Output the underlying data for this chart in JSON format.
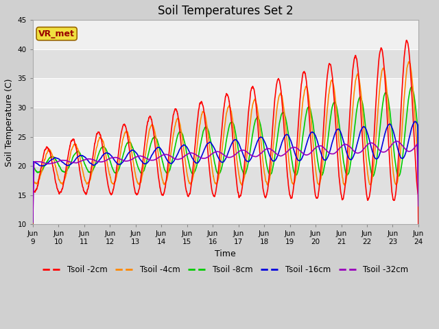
{
  "title": "Soil Temperatures Set 2",
  "xlabel": "Time",
  "ylabel": "Soil Temperature (C)",
  "ylim": [
    10,
    45
  ],
  "series_colors": [
    "#ff0000",
    "#ff8800",
    "#00cc00",
    "#0000dd",
    "#9900bb"
  ],
  "series_labels": [
    "Tsoil -2cm",
    "Tsoil -4cm",
    "Tsoil -8cm",
    "Tsoil -16cm",
    "Tsoil -32cm"
  ],
  "xtick_labels": [
    "Jun 9",
    "Jun 10",
    "Jun 11",
    "Jun 12",
    "Jun 13",
    "Jun 14",
    "Jun 15",
    "Jun 16",
    "Jun 17",
    "Jun 18",
    "Jun 19",
    "Jun 20",
    "Jun 21",
    "Jun 22",
    "Jun 23",
    "Jun 24"
  ],
  "vr_met_label": "VR_met",
  "yticks": [
    10,
    15,
    20,
    25,
    30,
    35,
    40,
    45
  ],
  "title_fontsize": 12,
  "axis_label_fontsize": 9,
  "tick_fontsize": 7.5,
  "legend_fontsize": 8.5,
  "fig_bg": "#d0d0d0",
  "plot_bg": "#e8e8e8",
  "band_colors": [
    "#f0f0f0",
    "#e0e0e0",
    "#f0f0f0",
    "#e0e0e0",
    "#f0f0f0",
    "#e0e0e0",
    "#f0f0f0"
  ]
}
